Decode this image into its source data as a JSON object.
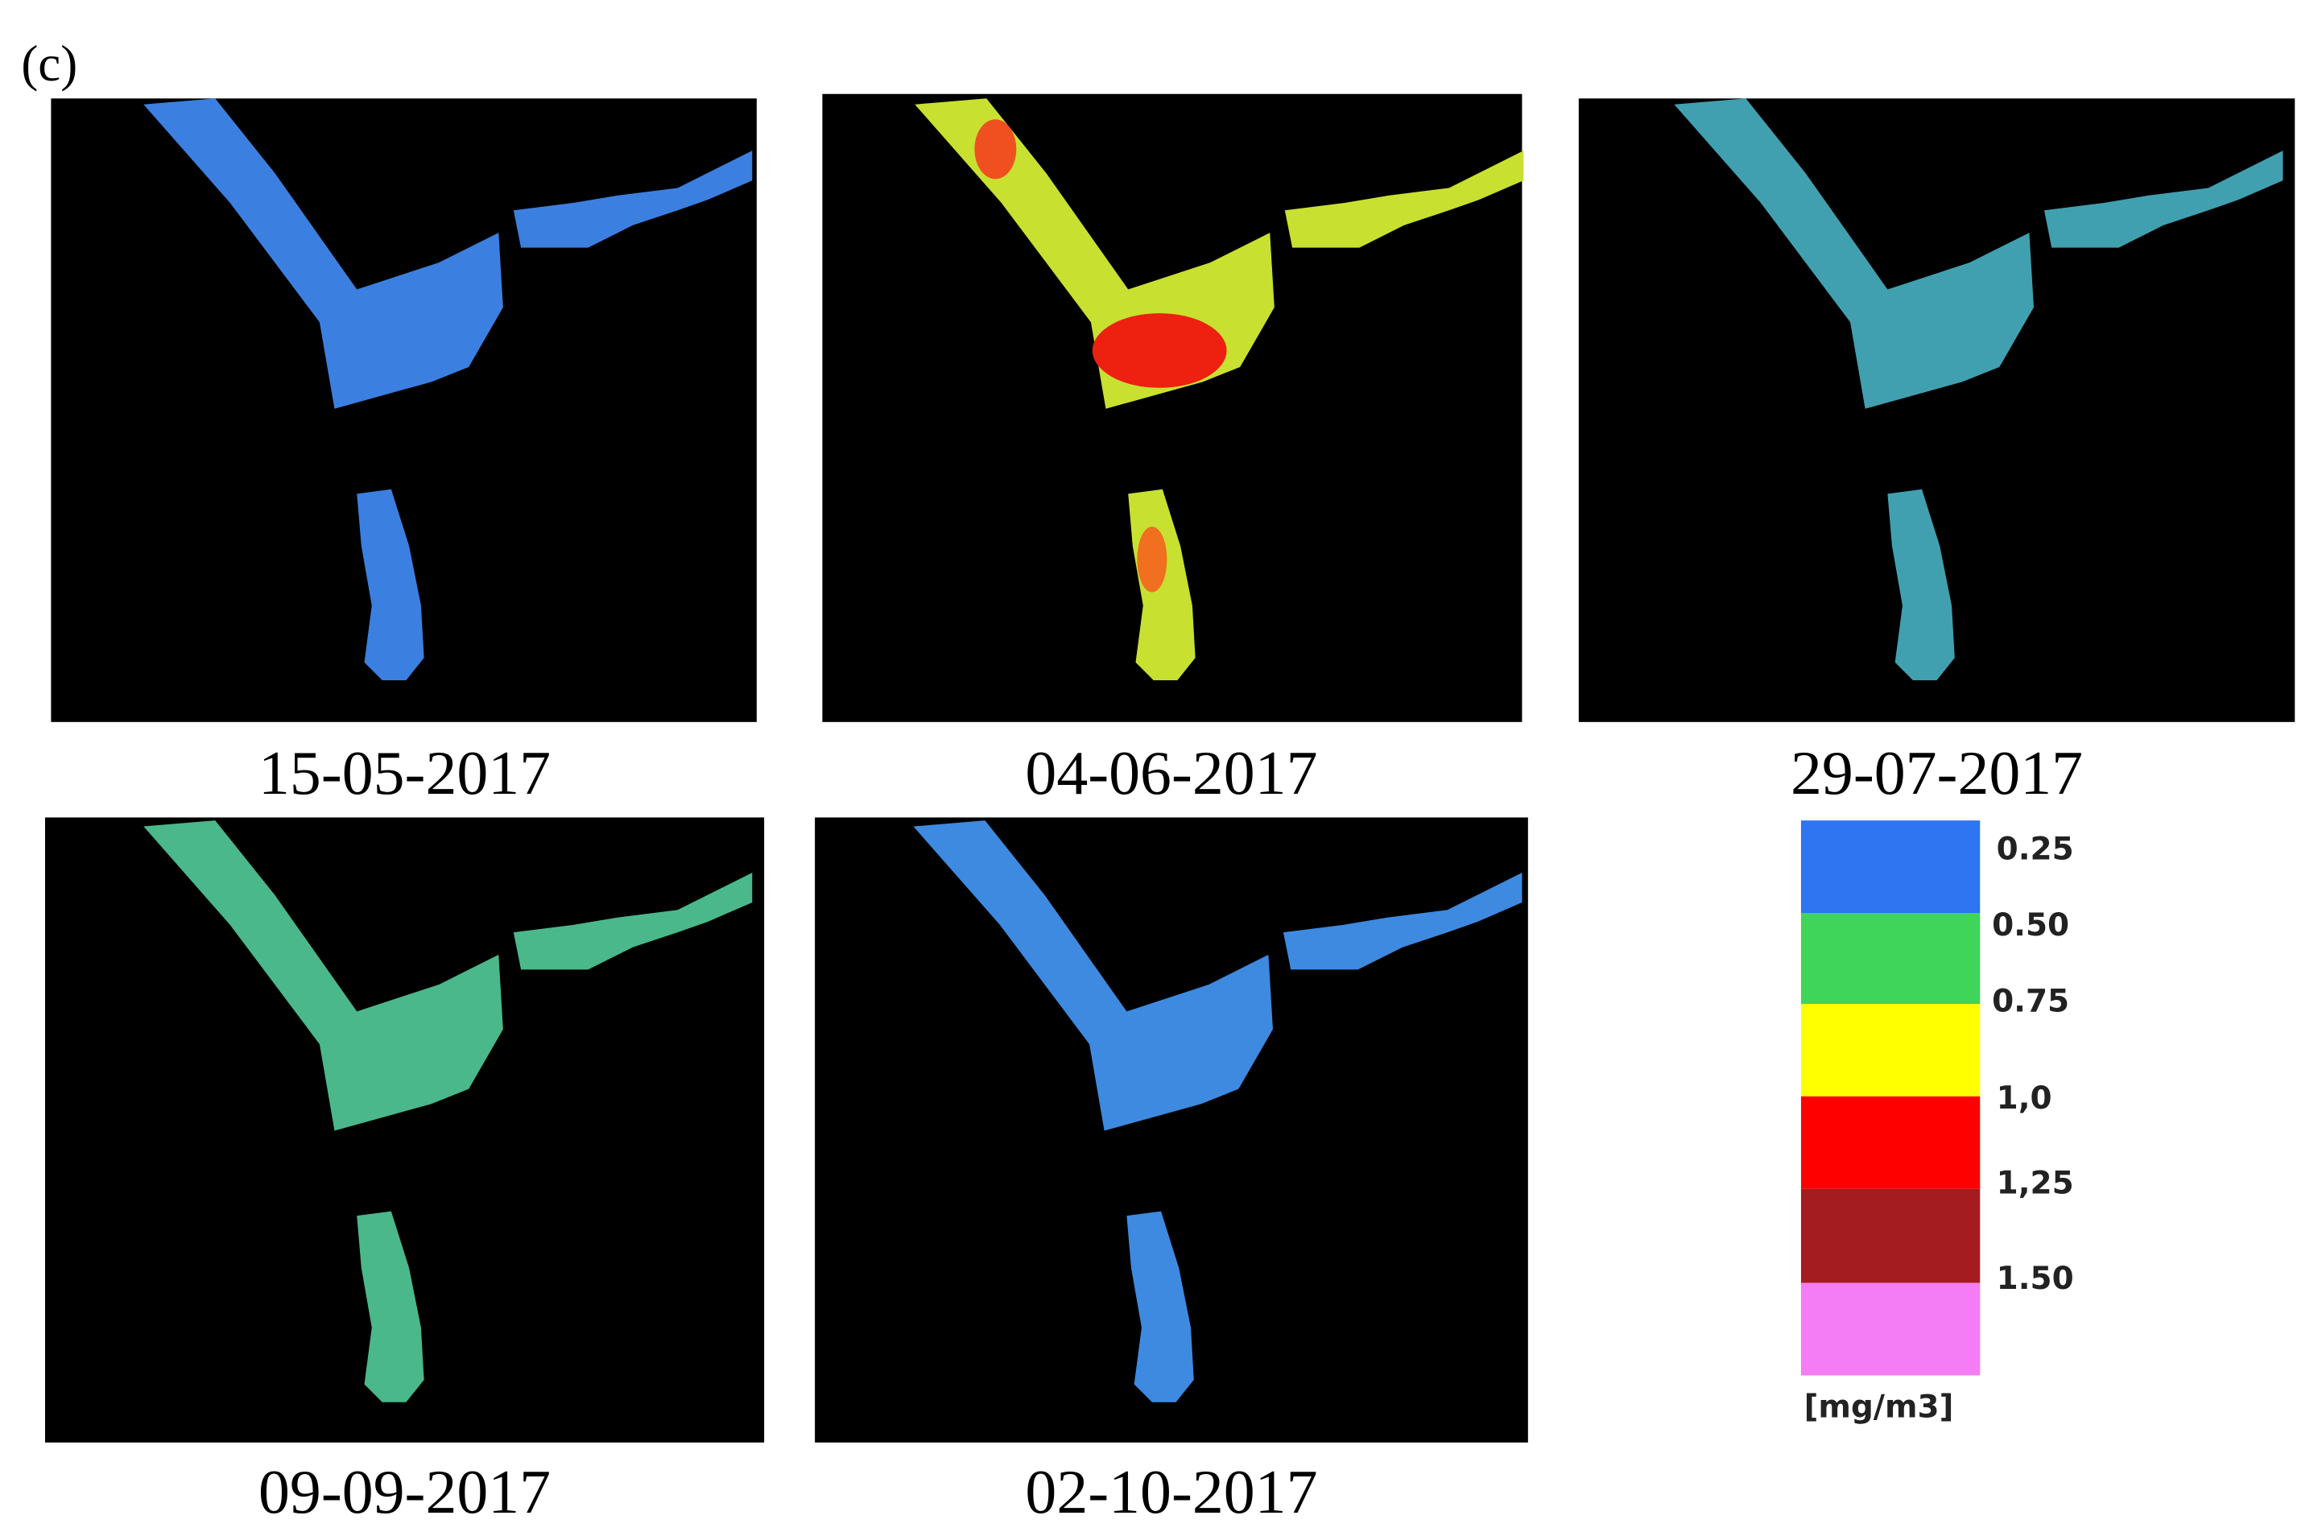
{
  "panel_label": "(c)",
  "panels": [
    {
      "date": "15-05-2017"
    },
    {
      "date": "04-06-2017"
    },
    {
      "date": "29-07-2017"
    },
    {
      "date": "09-09-2017"
    },
    {
      "date": "02-10-2017"
    }
  ],
  "legend": {
    "labels": [
      "0.25",
      "0.50",
      "0.75",
      "1,0",
      "1,25",
      "1.50"
    ],
    "unit": "[mg/m3]"
  }
}
